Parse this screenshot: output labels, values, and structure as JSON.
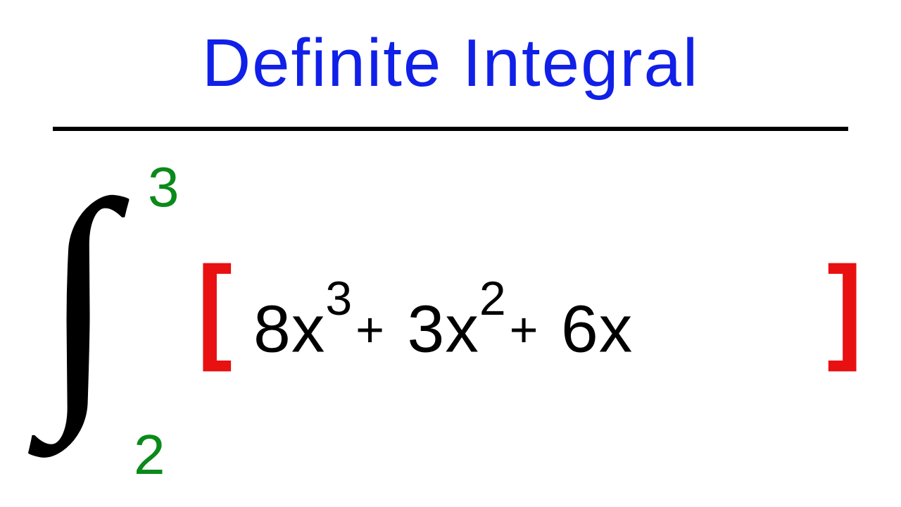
{
  "title": {
    "text": "Definite Integral",
    "color": "#1020e8",
    "fontsize": 96
  },
  "underline": {
    "color": "#000000",
    "thickness": 6
  },
  "integral": {
    "symbol": "∫",
    "symbol_color": "#000000",
    "upper_limit": "3",
    "lower_limit": "2",
    "limit_color": "#0a8a1a",
    "limit_fontsize": 80
  },
  "brackets": {
    "left": "[",
    "right": "]",
    "color": "#e81010",
    "fontsize": 150
  },
  "expression": {
    "color": "#000000",
    "fontsize": 95,
    "terms": [
      {
        "coef": "8",
        "var": "x",
        "exp": "3"
      },
      {
        "coef": "3",
        "var": "x",
        "exp": "2"
      },
      {
        "coef": "6",
        "var": "x",
        "exp": ""
      }
    ],
    "t1_coef": "8",
    "t1_var": "x",
    "t1_exp": "3",
    "t2_coef": "3",
    "t2_var": "x",
    "t2_exp": "2",
    "t3_coef": "6",
    "t3_var": "x",
    "plus": "+"
  },
  "background_color": "#ffffff"
}
